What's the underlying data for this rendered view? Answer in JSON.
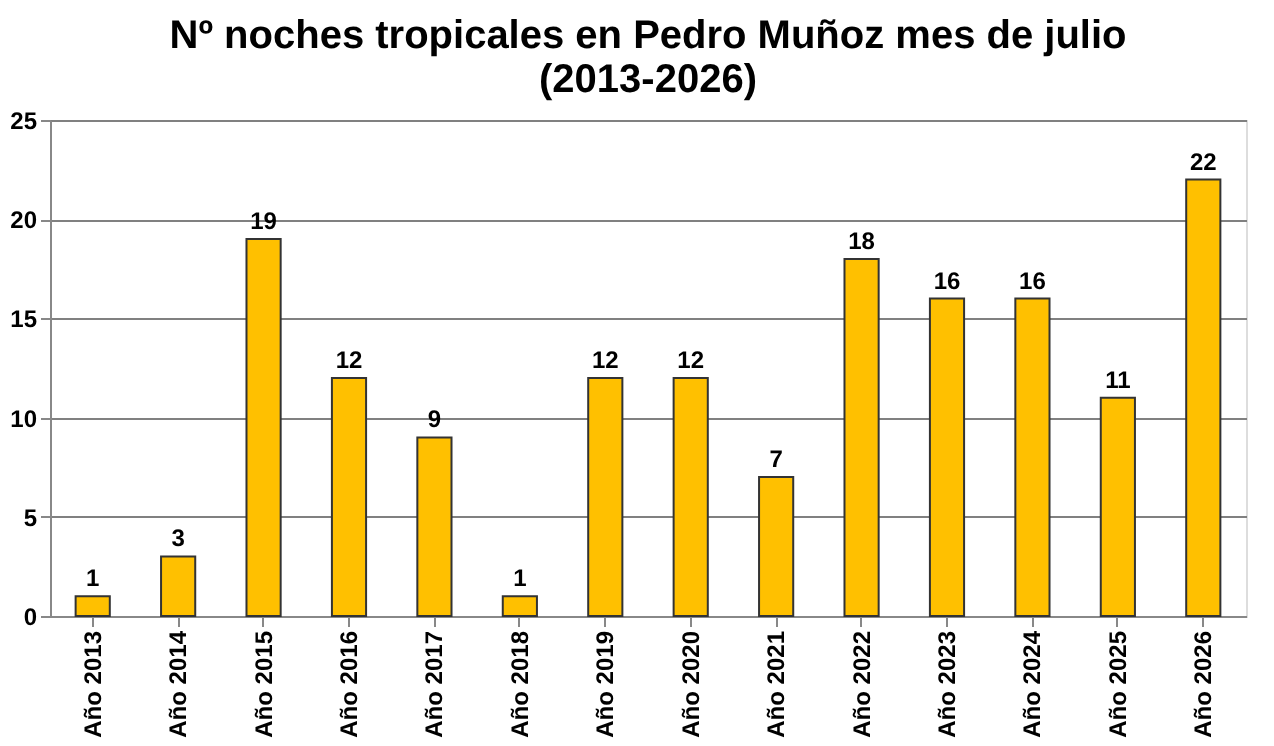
{
  "chart_data": {
    "type": "bar",
    "title": "Nº noches tropicales en Pedro Muñoz mes de julio\n(2013-2026)",
    "categories": [
      "Año 2013",
      "Año 2014",
      "Año 2015",
      "Año 2016",
      "Año 2017",
      "Año 2018",
      "Año 2019",
      "Año 2020",
      "Año 2021",
      "Año 2022",
      "Año 2023",
      "Año 2024",
      "Año 2025",
      "Año 2026"
    ],
    "values": [
      1,
      3,
      19,
      12,
      9,
      1,
      12,
      12,
      7,
      18,
      16,
      16,
      11,
      22
    ],
    "color": "#ffc000",
    "ylim": [
      0,
      25
    ],
    "yticks": [
      0,
      5,
      10,
      15,
      20,
      25
    ],
    "grid": "y",
    "data_labels": true
  }
}
